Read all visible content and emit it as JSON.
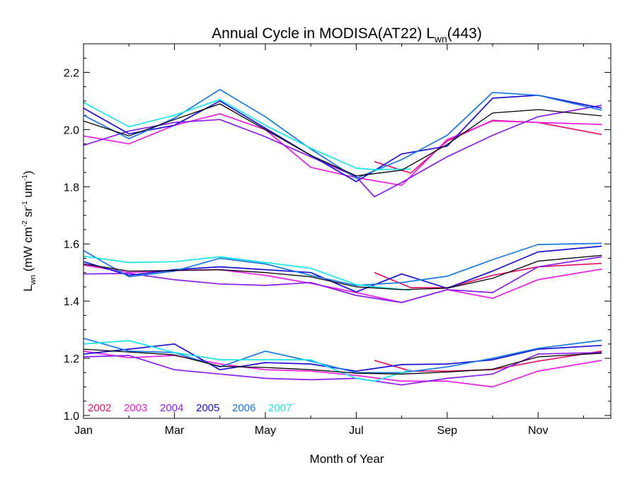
{
  "chart_data": {
    "type": "line",
    "title": "Annual Cycle in MODISA(AT22) L",
    "title_sub": "wn",
    "title_suffix": "(443)",
    "xlabel": "Month of Year",
    "ylabel_main": "L",
    "ylabel_sub": "wn",
    "ylabel_units": " (mW cm",
    "ylabel_exp1": "-2",
    "ylabel_mid": " sr",
    "ylabel_exp2": "-1",
    "ylabel_mid2": " um",
    "ylabel_exp3": "-1",
    "ylabel_close": ")",
    "xlim": [
      1,
      12.6
    ],
    "ylim": [
      0.99,
      2.3
    ],
    "x_ticks": [
      1,
      3,
      5,
      7,
      9,
      11
    ],
    "x_tick_labels": [
      "Jan",
      "Mar",
      "May",
      "Jul",
      "Sep",
      "Nov"
    ],
    "y_ticks": [
      1.0,
      1.2,
      1.4,
      1.6,
      1.8,
      2.0,
      2.2
    ],
    "y_tick_labels": [
      "1.0",
      "1.2",
      "1.4",
      "1.6",
      "1.8",
      "2.0",
      "2.2"
    ],
    "legend_placement": "bottom-left",
    "series": [
      {
        "name": "2002",
        "color": "#e8106a",
        "groups": [
          {
            "x": [
              7.4,
              8.2,
              9,
              10,
              11,
              12.4
            ],
            "y": [
              1.888,
              1.848,
              1.96,
              2.032,
              2.025,
              1.983
            ]
          },
          {
            "x": [
              7.4,
              8.2,
              9,
              10,
              11,
              12.4
            ],
            "y": [
              1.5,
              1.447,
              1.447,
              1.49,
              1.52,
              1.532
            ]
          },
          {
            "x": [
              7.4,
              8.2,
              9,
              10,
              11,
              12.4
            ],
            "y": [
              1.193,
              1.155,
              1.155,
              1.16,
              1.19,
              1.225
            ]
          }
        ]
      },
      {
        "name": "2003",
        "color": "#ee1ce6",
        "groups": [
          {
            "x": [
              1,
              2,
              3,
              4,
              5,
              6,
              7,
              8,
              9,
              10,
              11,
              12.4
            ],
            "y": [
              1.978,
              1.95,
              2.015,
              2.055,
              2.0,
              1.868,
              1.832,
              1.805,
              1.965,
              2.03,
              2.025,
              2.018
            ]
          },
          {
            "x": [
              1,
              2,
              3,
              4,
              5,
              6,
              7,
              8,
              9,
              10,
              11,
              12.4
            ],
            "y": [
              1.526,
              1.5,
              1.507,
              1.51,
              1.49,
              1.462,
              1.43,
              1.395,
              1.44,
              1.41,
              1.475,
              1.512
            ]
          },
          {
            "x": [
              1,
              2,
              3,
              4,
              5,
              6,
              7,
              8,
              9,
              10,
              11,
              12.4
            ],
            "y": [
              1.225,
              1.202,
              1.21,
              1.18,
              1.16,
              1.155,
              1.14,
              1.12,
              1.12,
              1.1,
              1.155,
              1.193
            ]
          }
        ]
      },
      {
        "name": "2004",
        "color": "#8a1cf0",
        "groups": [
          {
            "x": [
              1,
              2,
              3,
              4,
              5,
              6,
              7,
              7.4,
              8,
              9,
              10,
              11,
              12.4
            ],
            "y": [
              1.945,
              1.995,
              2.025,
              2.035,
              1.975,
              1.905,
              1.835,
              1.765,
              1.815,
              1.905,
              1.98,
              2.045,
              2.085
            ]
          },
          {
            "x": [
              1,
              2,
              3,
              4,
              5,
              6,
              7,
              8,
              9,
              10,
              11,
              12.4
            ],
            "y": [
              1.495,
              1.497,
              1.475,
              1.46,
              1.455,
              1.465,
              1.42,
              1.395,
              1.44,
              1.43,
              1.52,
              1.555
            ]
          },
          {
            "x": [
              1,
              2,
              3,
              4,
              5,
              6,
              7,
              8,
              9,
              10,
              11,
              12.4
            ],
            "y": [
              1.205,
              1.21,
              1.16,
              1.145,
              1.13,
              1.125,
              1.13,
              1.107,
              1.13,
              1.145,
              1.215,
              1.22
            ]
          }
        ]
      },
      {
        "name": "2005",
        "color": "#1a10d8",
        "groups": [
          {
            "x": [
              1,
              2,
              3,
              4,
              5,
              6,
              7,
              8,
              9,
              10,
              11,
              12.4
            ],
            "y": [
              2.075,
              1.985,
              2.015,
              2.1,
              2.005,
              1.91,
              1.818,
              1.915,
              1.942,
              2.11,
              2.12,
              2.075
            ]
          },
          {
            "x": [
              1,
              2,
              3,
              4,
              5,
              6,
              7,
              8,
              9,
              10,
              11,
              12.4
            ],
            "y": [
              1.538,
              1.49,
              1.51,
              1.52,
              1.51,
              1.5,
              1.432,
              1.495,
              1.445,
              1.505,
              1.572,
              1.592
            ]
          },
          {
            "x": [
              1,
              2,
              3,
              4,
              5,
              6,
              7,
              8,
              9,
              10,
              11,
              12.4
            ],
            "y": [
              1.215,
              1.232,
              1.25,
              1.16,
              1.185,
              1.18,
              1.155,
              1.178,
              1.18,
              1.195,
              1.232,
              1.245
            ]
          }
        ]
      },
      {
        "name": "2006",
        "color": "#1678e6",
        "groups": [
          {
            "x": [
              1,
              2,
              3,
              4,
              5,
              6,
              7,
              8,
              9,
              10,
              11,
              12.4
            ],
            "y": [
              2.05,
              1.968,
              2.04,
              2.14,
              2.045,
              1.932,
              1.83,
              1.895,
              1.98,
              2.13,
              2.12,
              2.068
            ]
          },
          {
            "x": [
              1,
              2,
              3,
              4,
              5,
              6,
              7,
              8,
              9,
              10,
              11,
              12.4
            ],
            "y": [
              1.577,
              1.485,
              1.505,
              1.55,
              1.53,
              1.49,
              1.455,
              1.465,
              1.487,
              1.545,
              1.598,
              1.602
            ]
          },
          {
            "x": [
              1,
              2,
              3,
              4,
              5,
              6,
              7,
              8,
              9,
              10,
              11,
              12.4
            ],
            "y": [
              1.27,
              1.225,
              1.22,
              1.17,
              1.225,
              1.19,
              1.15,
              1.15,
              1.17,
              1.2,
              1.235,
              1.263
            ]
          }
        ]
      },
      {
        "name": "2007",
        "color": "#1ae6ea",
        "groups": [
          {
            "x": [
              1,
              2,
              3,
              4,
              5,
              6,
              7,
              7.4,
              8.2
            ],
            "y": [
              2.095,
              2.01,
              2.05,
              2.105,
              2.015,
              1.935,
              1.865,
              1.86,
              1.862
            ]
          },
          {
            "x": [
              1,
              2,
              3,
              4,
              5,
              6,
              7,
              7.4,
              8.2
            ],
            "y": [
              1.557,
              1.535,
              1.538,
              1.555,
              1.535,
              1.515,
              1.458,
              1.45,
              1.438
            ]
          },
          {
            "x": [
              1,
              2,
              3,
              4,
              5,
              6,
              7,
              7.4,
              8.2
            ],
            "y": [
              1.25,
              1.262,
              1.22,
              1.195,
              1.195,
              1.195,
              1.13,
              1.12,
              1.16
            ]
          }
        ]
      },
      {
        "name": "",
        "color": "#000000",
        "groups": [
          {
            "x": [
              1,
              2,
              3,
              4,
              5,
              6,
              7,
              8,
              9,
              10,
              11,
              12.4
            ],
            "y": [
              2.03,
              1.978,
              2.035,
              2.09,
              2.0,
              1.91,
              1.838,
              1.858,
              1.948,
              2.058,
              2.07,
              2.048
            ]
          },
          {
            "x": [
              1,
              2,
              3,
              4,
              5,
              6,
              7,
              8,
              9,
              10,
              11,
              12.4
            ],
            "y": [
              1.53,
              1.505,
              1.507,
              1.51,
              1.5,
              1.485,
              1.45,
              1.44,
              1.445,
              1.48,
              1.54,
              1.56
            ]
          },
          {
            "x": [
              1,
              2,
              3,
              4,
              5,
              6,
              7,
              8,
              9,
              10,
              11,
              12.4
            ],
            "y": [
              1.232,
              1.222,
              1.212,
              1.172,
              1.168,
              1.16,
              1.148,
              1.145,
              1.152,
              1.162,
              1.205,
              1.218
            ]
          }
        ]
      }
    ]
  }
}
